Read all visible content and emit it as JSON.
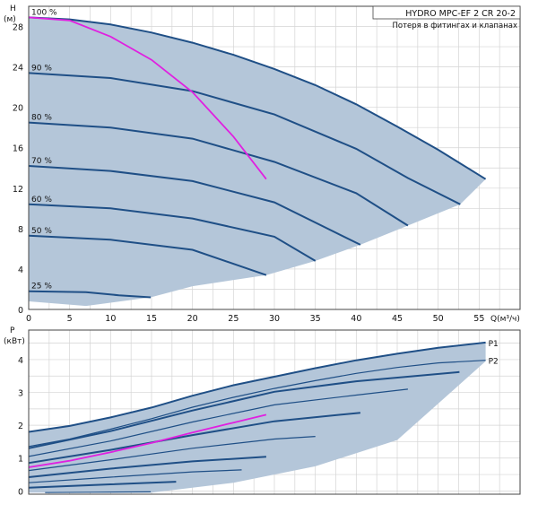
{
  "title": "HYDRO MPC-EF 2 CR 20-2",
  "subtitle": "Потеря в фитингах и клапанах",
  "colors": {
    "region": "#b4c6d9",
    "curve": "#1f4f86",
    "system": "#e020e0",
    "grid": "#d4d4d4",
    "frame": "#444444"
  },
  "chart_data": [
    {
      "type": "line",
      "name": "head",
      "ylabel": "H",
      "yunit": "(м)",
      "xlabel": "Q(м³/ч)",
      "xlim": [
        0,
        60
      ],
      "ylim": [
        0,
        30
      ],
      "xticks": [
        0,
        5,
        10,
        15,
        20,
        25,
        30,
        35,
        40,
        45,
        50,
        55
      ],
      "yticks": [
        0,
        4,
        8,
        12,
        16,
        20,
        24,
        28
      ],
      "region": {
        "top": [
          [
            0,
            28.9
          ],
          [
            5,
            28.7
          ],
          [
            10,
            28.2
          ],
          [
            15,
            27.4
          ],
          [
            20,
            26.4
          ],
          [
            25,
            25.2
          ],
          [
            30,
            23.8
          ],
          [
            35,
            22.2
          ],
          [
            40,
            20.3
          ],
          [
            45,
            18.1
          ],
          [
            50,
            15.8
          ],
          [
            55.8,
            12.9
          ]
        ],
        "bottom": [
          [
            14.9,
            1.2
          ],
          [
            20,
            2.3
          ],
          [
            29,
            3.4
          ],
          [
            35,
            4.8
          ],
          [
            40.5,
            6.4
          ],
          [
            46.3,
            8.3
          ],
          [
            52.7,
            10.4
          ],
          [
            55.8,
            12.9
          ]
        ]
      },
      "series": [
        {
          "label": "100 %",
          "points": [
            [
              0,
              28.9
            ],
            [
              5,
              28.7
            ],
            [
              10,
              28.2
            ],
            [
              15,
              27.4
            ],
            [
              20,
              26.4
            ],
            [
              25,
              25.2
            ],
            [
              30,
              23.8
            ],
            [
              35,
              22.2
            ],
            [
              40,
              20.3
            ],
            [
              45,
              18.1
            ],
            [
              50,
              15.8
            ],
            [
              55.8,
              12.9
            ]
          ]
        },
        {
          "label": "90 %",
          "points": [
            [
              0,
              23.4
            ],
            [
              10,
              22.9
            ],
            [
              20,
              21.6
            ],
            [
              30,
              19.3
            ],
            [
              40,
              15.9
            ],
            [
              46.3,
              13.0
            ],
            [
              52.7,
              10.4
            ]
          ]
        },
        {
          "label": "80 %",
          "points": [
            [
              0,
              18.5
            ],
            [
              10,
              18.0
            ],
            [
              20,
              16.9
            ],
            [
              30,
              14.6
            ],
            [
              40,
              11.5
            ],
            [
              46.3,
              8.3
            ]
          ]
        },
        {
          "label": "70 %",
          "points": [
            [
              0,
              14.2
            ],
            [
              10,
              13.7
            ],
            [
              20,
              12.7
            ],
            [
              30,
              10.6
            ],
            [
              40.5,
              6.4
            ]
          ]
        },
        {
          "label": "60 %",
          "points": [
            [
              0,
              10.4
            ],
            [
              10,
              10.0
            ],
            [
              20,
              9.0
            ],
            [
              30,
              7.2
            ],
            [
              35,
              4.8
            ]
          ]
        },
        {
          "label": "50 %",
          "points": [
            [
              0,
              7.3
            ],
            [
              10,
              6.9
            ],
            [
              20,
              5.9
            ],
            [
              29,
              3.4
            ]
          ]
        },
        {
          "label": "25 %",
          "points": [
            [
              0,
              1.8
            ],
            [
              7,
              1.7
            ],
            [
              11,
              1.4
            ],
            [
              14.9,
              1.2
            ]
          ]
        }
      ],
      "system_curve": {
        "label": "",
        "points": [
          [
            0,
            28.9
          ],
          [
            5,
            28.6
          ],
          [
            10,
            27.0
          ],
          [
            15,
            24.7
          ],
          [
            20,
            21.5
          ],
          [
            25,
            17.1
          ],
          [
            29,
            12.9
          ]
        ]
      }
    },
    {
      "type": "line",
      "name": "power",
      "ylabel": "P",
      "yunit": "(кВт)",
      "xlim": [
        0,
        60
      ],
      "ylim": [
        -0.1,
        4.9
      ],
      "yticks": [
        0,
        1,
        2,
        3,
        4
      ],
      "region": {
        "top": [
          [
            0,
            1.8
          ],
          [
            5,
            1.98
          ],
          [
            10,
            2.24
          ],
          [
            15,
            2.54
          ],
          [
            20,
            2.9
          ],
          [
            25,
            3.22
          ],
          [
            30,
            3.48
          ],
          [
            35,
            3.74
          ],
          [
            40,
            3.98
          ],
          [
            45,
            4.18
          ],
          [
            50,
            4.36
          ],
          [
            55.8,
            4.52
          ]
        ],
        "bottom": [
          [
            0,
            -0.05
          ],
          [
            15,
            -0.05
          ],
          [
            25,
            0.25
          ],
          [
            35,
            0.75
          ],
          [
            45,
            1.55
          ],
          [
            55.8,
            3.95
          ]
        ]
      },
      "p1": {
        "label": "P1",
        "points": [
          [
            0,
            1.8
          ],
          [
            5,
            1.98
          ],
          [
            10,
            2.24
          ],
          [
            15,
            2.54
          ],
          [
            20,
            2.9
          ],
          [
            25,
            3.22
          ],
          [
            30,
            3.48
          ],
          [
            35,
            3.74
          ],
          [
            40,
            3.98
          ],
          [
            45,
            4.18
          ],
          [
            50,
            4.36
          ],
          [
            55.8,
            4.52
          ]
        ]
      },
      "p2": {
        "label": "P2",
        "points": [
          [
            0,
            1.35
          ],
          [
            5,
            1.58
          ],
          [
            10,
            1.88
          ],
          [
            15,
            2.2
          ],
          [
            20,
            2.55
          ],
          [
            25,
            2.85
          ],
          [
            30,
            3.12
          ],
          [
            35,
            3.36
          ],
          [
            40,
            3.58
          ],
          [
            45,
            3.76
          ],
          [
            50,
            3.9
          ],
          [
            55.8,
            3.98
          ]
        ]
      },
      "series": [
        {
          "points": [
            [
              0,
              1.3
            ],
            [
              10,
              1.82
            ],
            [
              20,
              2.45
            ],
            [
              30,
              3.02
            ],
            [
              40,
              3.34
            ],
            [
              52.6,
              3.62
            ]
          ]
        },
        {
          "points": [
            [
              0,
              1.05
            ],
            [
              10,
              1.52
            ],
            [
              20,
              2.1
            ],
            [
              30,
              2.62
            ],
            [
              40,
              2.92
            ],
            [
              46.3,
              3.1
            ]
          ]
        },
        {
          "points": [
            [
              0,
              0.85
            ],
            [
              10,
              1.25
            ],
            [
              20,
              1.7
            ],
            [
              30,
              2.12
            ],
            [
              40.5,
              2.38
            ]
          ]
        },
        {
          "points": [
            [
              0,
              0.62
            ],
            [
              10,
              0.95
            ],
            [
              20,
              1.3
            ],
            [
              30,
              1.58
            ],
            [
              35,
              1.66
            ]
          ]
        },
        {
          "points": [
            [
              0,
              0.42
            ],
            [
              10,
              0.68
            ],
            [
              20,
              0.9
            ],
            [
              29,
              1.04
            ]
          ]
        },
        {
          "points": [
            [
              0,
              0.25
            ],
            [
              10,
              0.42
            ],
            [
              20,
              0.58
            ],
            [
              26,
              0.64
            ]
          ]
        },
        {
          "points": [
            [
              0,
              0.1
            ],
            [
              10,
              0.2
            ],
            [
              18,
              0.28
            ]
          ]
        },
        {
          "points": [
            [
              2,
              -0.05
            ],
            [
              8,
              -0.04
            ],
            [
              14.9,
              -0.03
            ]
          ]
        }
      ],
      "system_curve": {
        "label": "",
        "points": [
          [
            0,
            0.72
          ],
          [
            5,
            0.92
          ],
          [
            10,
            1.18
          ],
          [
            15,
            1.46
          ],
          [
            20,
            1.78
          ],
          [
            25,
            2.08
          ],
          [
            29,
            2.32
          ]
        ]
      }
    }
  ]
}
